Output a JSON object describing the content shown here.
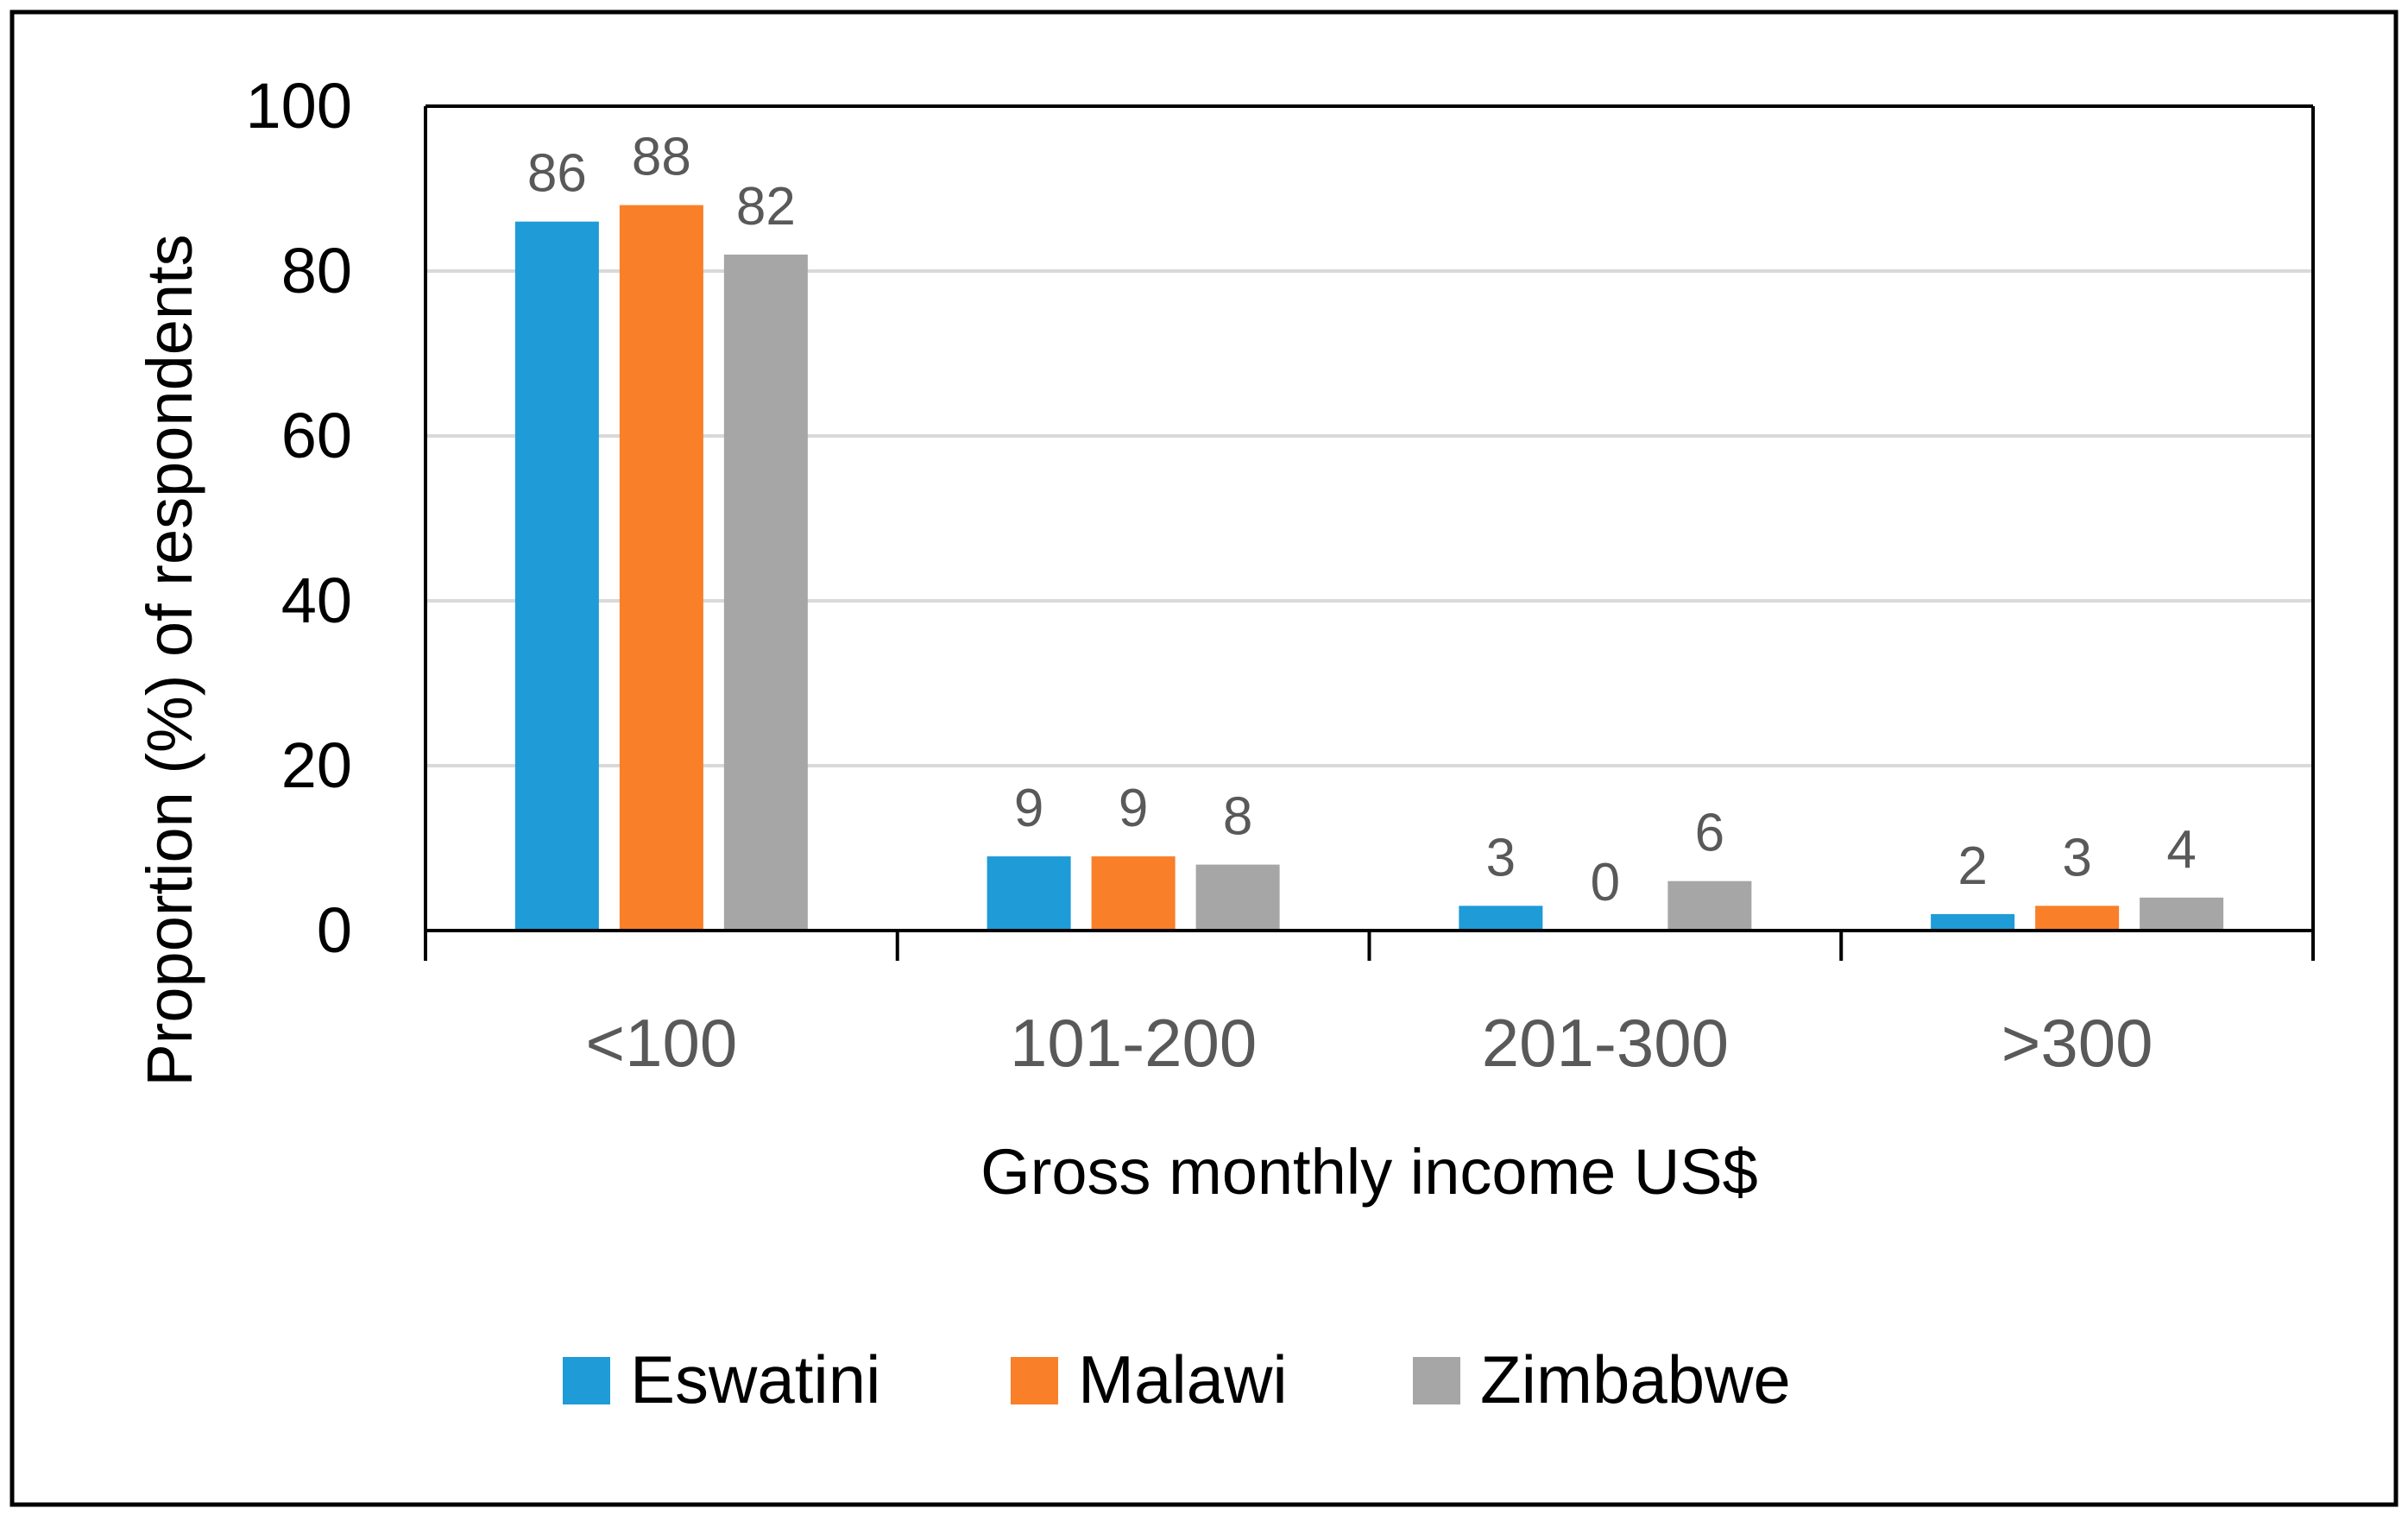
{
  "chart_data": {
    "type": "bar",
    "title": "",
    "xlabel": "Gross monthly income US$",
    "ylabel": "Proportion (%) of respondents",
    "categories": [
      "<100",
      "101-200",
      "201-300",
      ">300"
    ],
    "ylim": [
      0,
      100
    ],
    "yticks": [
      0,
      20,
      40,
      60,
      80,
      100
    ],
    "grid": true,
    "legend_position": "bottom",
    "series": [
      {
        "name": "Eswatini",
        "color": "#1F9BD7",
        "values": [
          86,
          9,
          3,
          2
        ]
      },
      {
        "name": "Malawi",
        "color": "#F97F29",
        "values": [
          88,
          9,
          0,
          3
        ]
      },
      {
        "name": "Zimbabwe",
        "color": "#A6A6A6",
        "values": [
          82,
          8,
          6,
          4
        ]
      }
    ]
  }
}
